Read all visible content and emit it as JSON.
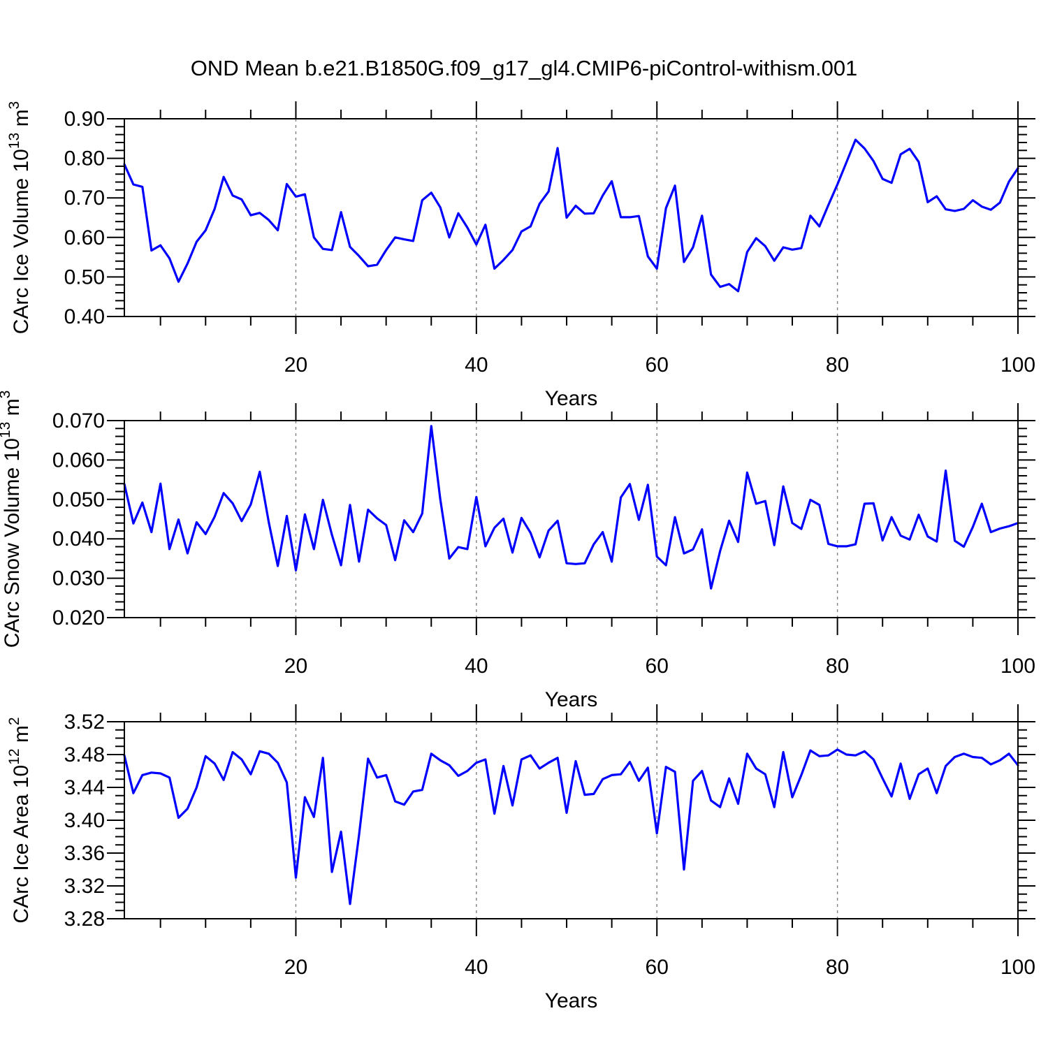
{
  "title": "OND Mean b.e21.B1850G.f09_g17_gl4.CMIP6-piControl-withism.001",
  "colors": {
    "line": "#0000ff",
    "axis": "#000000",
    "grid": "#808080",
    "text": "#000000"
  },
  "chart_data": [
    {
      "type": "line",
      "name": "ice-volume",
      "ylabel": "CArc Ice Volume 10^13 m^3",
      "ylabel_segments": [
        {
          "t": "CArc Ice Volume 10"
        },
        {
          "t": "13",
          "sup": true
        },
        {
          "t": " m"
        },
        {
          "t": "3",
          "sup": true
        }
      ],
      "xlabel": "Years",
      "legend": "none",
      "grid_on": true,
      "ylim": [
        0.4,
        0.9
      ],
      "ymajor": 0.1,
      "yminor": 0.02,
      "ydecimals": 2,
      "xlim": [
        1,
        100
      ],
      "xticks": [
        20,
        40,
        60,
        80,
        100
      ],
      "xminor_step": 5,
      "gridlines_x": [
        20,
        40,
        60,
        80
      ],
      "x_start": 1,
      "values": [
        0.785,
        0.734,
        0.728,
        0.567,
        0.58,
        0.547,
        0.488,
        0.534,
        0.589,
        0.618,
        0.672,
        0.753,
        0.706,
        0.696,
        0.656,
        0.662,
        0.644,
        0.618,
        0.735,
        0.703,
        0.709,
        0.6,
        0.571,
        0.568,
        0.664,
        0.576,
        0.553,
        0.527,
        0.531,
        0.568,
        0.6,
        0.595,
        0.591,
        0.694,
        0.713,
        0.676,
        0.6,
        0.661,
        0.625,
        0.582,
        0.632,
        0.521,
        0.543,
        0.568,
        0.615,
        0.628,
        0.685,
        0.716,
        0.826,
        0.65,
        0.68,
        0.66,
        0.661,
        0.706,
        0.742,
        0.651,
        0.651,
        0.654,
        0.552,
        0.521,
        0.674,
        0.731,
        0.538,
        0.575,
        0.655,
        0.506,
        0.475,
        0.482,
        0.464,
        0.563,
        0.598,
        0.578,
        0.541,
        0.575,
        0.569,
        0.573,
        0.655,
        0.628,
        0.682,
        0.734,
        0.79,
        0.847,
        0.825,
        0.793,
        0.748,
        0.738,
        0.81,
        0.824,
        0.791,
        0.689,
        0.704,
        0.671,
        0.667,
        0.672,
        0.694,
        0.678,
        0.67,
        0.688,
        0.741,
        0.775
      ]
    },
    {
      "type": "line",
      "name": "snow-volume",
      "ylabel": "CArc Snow Volume 10^13 m^3",
      "ylabel_segments": [
        {
          "t": "CArc Snow Volume 10"
        },
        {
          "t": "13",
          "sup": true
        },
        {
          "t": " m"
        },
        {
          "t": "3",
          "sup": true
        }
      ],
      "xlabel": "Years",
      "legend": "none",
      "grid_on": true,
      "ylim": [
        0.02,
        0.07
      ],
      "ymajor": 0.01,
      "yminor": 0.002,
      "ydecimals": 3,
      "xlim": [
        1,
        100
      ],
      "xticks": [
        20,
        40,
        60,
        80,
        100
      ],
      "xminor_step": 5,
      "gridlines_x": [
        20,
        40,
        60,
        80
      ],
      "x_start": 1,
      "values": [
        0.0539,
        0.0439,
        0.0492,
        0.0417,
        0.054,
        0.0374,
        0.0449,
        0.0363,
        0.0442,
        0.0412,
        0.0456,
        0.0516,
        0.049,
        0.0445,
        0.0487,
        0.057,
        0.0442,
        0.0331,
        0.0458,
        0.032,
        0.0462,
        0.0374,
        0.0499,
        0.041,
        0.0333,
        0.0486,
        0.0342,
        0.0474,
        0.0452,
        0.0435,
        0.0346,
        0.0447,
        0.0417,
        0.0464,
        0.0686,
        0.05,
        0.035,
        0.0379,
        0.0374,
        0.0506,
        0.0381,
        0.0428,
        0.0451,
        0.0365,
        0.0453,
        0.0415,
        0.0353,
        0.0421,
        0.0446,
        0.0338,
        0.0336,
        0.0338,
        0.0386,
        0.0417,
        0.0342,
        0.0505,
        0.0539,
        0.0448,
        0.0537,
        0.0355,
        0.0333,
        0.0455,
        0.0363,
        0.0373,
        0.0424,
        0.0274,
        0.0369,
        0.0446,
        0.0392,
        0.0568,
        0.0489,
        0.0496,
        0.0384,
        0.0533,
        0.044,
        0.0425,
        0.0499,
        0.0486,
        0.0387,
        0.0381,
        0.0381,
        0.0386,
        0.0489,
        0.049,
        0.0396,
        0.0455,
        0.0408,
        0.0398,
        0.0461,
        0.0406,
        0.0393,
        0.0573,
        0.0395,
        0.038,
        0.043,
        0.0489,
        0.0417,
        0.0426,
        0.0432,
        0.044
      ]
    },
    {
      "type": "line",
      "name": "ice-area",
      "ylabel": "CArc Ice Area 10^12 m^2",
      "ylabel_segments": [
        {
          "t": "CArc Ice Area 10"
        },
        {
          "t": "12",
          "sup": true
        },
        {
          "t": " m"
        },
        {
          "t": "2",
          "sup": true
        }
      ],
      "xlabel": "Years",
      "legend": "none",
      "grid_on": true,
      "ylim": [
        3.28,
        3.52
      ],
      "ymajor": 0.04,
      "yminor": 0.01,
      "ydecimals": 2,
      "xlim": [
        1,
        100
      ],
      "xticks": [
        20,
        40,
        60,
        80,
        100
      ],
      "xminor_step": 5,
      "gridlines_x": [
        20,
        40,
        60,
        80
      ],
      "x_start": 1,
      "values": [
        3.479,
        3.433,
        3.455,
        3.458,
        3.457,
        3.452,
        3.403,
        3.414,
        3.44,
        3.478,
        3.469,
        3.449,
        3.483,
        3.474,
        3.456,
        3.484,
        3.481,
        3.47,
        3.446,
        3.33,
        3.428,
        3.404,
        3.476,
        3.337,
        3.386,
        3.298,
        3.382,
        3.475,
        3.452,
        3.455,
        3.423,
        3.419,
        3.435,
        3.437,
        3.481,
        3.473,
        3.467,
        3.454,
        3.46,
        3.47,
        3.474,
        3.408,
        3.466,
        3.418,
        3.474,
        3.479,
        3.463,
        3.47,
        3.476,
        3.409,
        3.472,
        3.431,
        3.432,
        3.45,
        3.455,
        3.456,
        3.471,
        3.448,
        3.464,
        3.384,
        3.465,
        3.459,
        3.34,
        3.448,
        3.46,
        3.424,
        3.416,
        3.451,
        3.42,
        3.481,
        3.463,
        3.456,
        3.416,
        3.483,
        3.428,
        3.455,
        3.485,
        3.478,
        3.479,
        3.486,
        3.48,
        3.479,
        3.484,
        3.474,
        3.451,
        3.429,
        3.469,
        3.426,
        3.456,
        3.463,
        3.433,
        3.466,
        3.477,
        3.481,
        3.477,
        3.476,
        3.468,
        3.473,
        3.481,
        3.467
      ]
    }
  ]
}
